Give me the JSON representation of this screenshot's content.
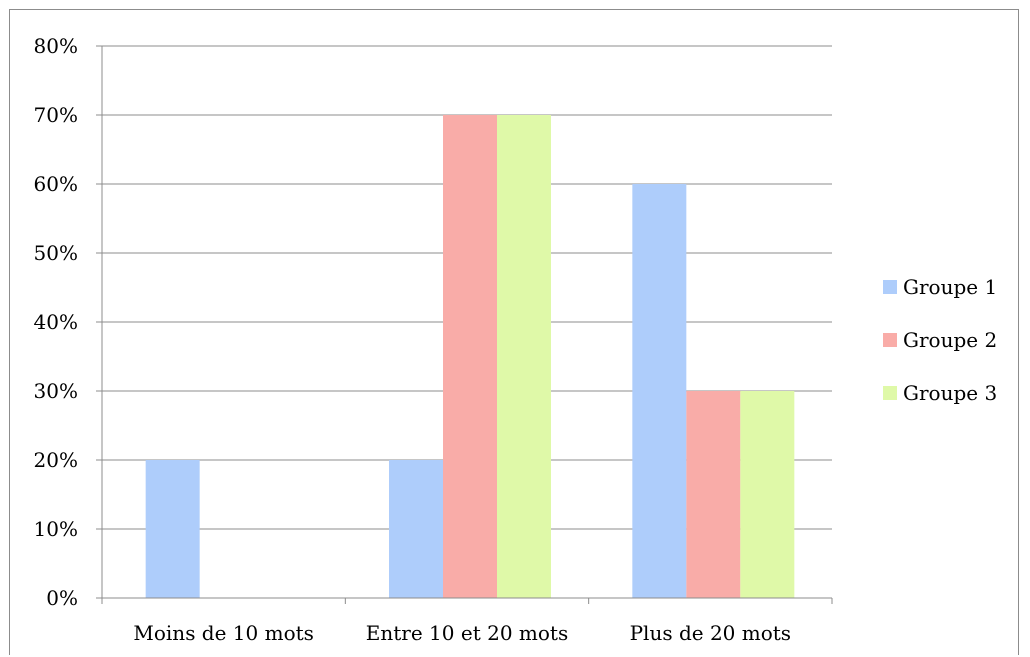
{
  "chart_data": {
    "type": "bar",
    "title": "",
    "xlabel": "",
    "ylabel": "",
    "categories": [
      "Moins de 10 mots",
      "Entre 10 et 20 mots",
      "Plus de 20 mots"
    ],
    "series": [
      {
        "name": "Groupe 1",
        "color": "#aecdfb",
        "values": [
          20,
          20,
          60
        ]
      },
      {
        "name": "Groupe 2",
        "color": "#f9aca8",
        "values": [
          0,
          70,
          30
        ]
      },
      {
        "name": "Groupe 3",
        "color": "#dff9a8",
        "values": [
          0,
          70,
          30
        ]
      }
    ],
    "ylim": [
      0,
      80
    ],
    "yticks": [
      0,
      10,
      20,
      30,
      40,
      50,
      60,
      70,
      80
    ],
    "ytick_labels": [
      "0%",
      "10%",
      "20%",
      "30%",
      "40%",
      "50%",
      "60%",
      "70%",
      "80%"
    ],
    "grid": true,
    "legend": "right"
  }
}
